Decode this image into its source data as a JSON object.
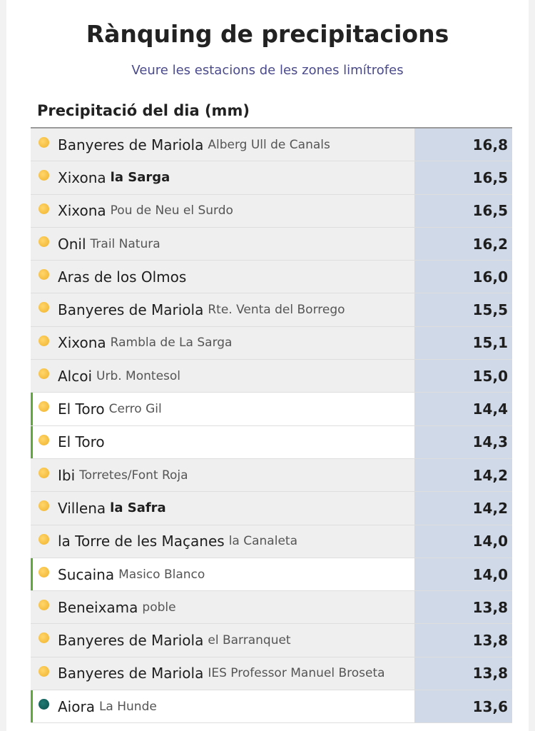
{
  "header": {
    "title": "Rànquing de precipitacions",
    "subtitle_link": "Veure les estacions de les zones limítrofes"
  },
  "section": {
    "title": "Precipitació del dia (mm)"
  },
  "colors": {
    "value_column": "#cfd9e8",
    "highlight_bar": "#5fa83a",
    "dot_yellow": "#f0b22a",
    "dot_teal": "#0a4f4b"
  },
  "rows": [
    {
      "town": "Banyeres de Mariola",
      "station": "Alberg Ull de Canals",
      "value": "16,8"
    },
    {
      "town": "Xixona",
      "station": "la Sarga",
      "value": "16,5"
    },
    {
      "town": "Xixona",
      "station": "Pou de Neu el Surdo",
      "value": "16,5"
    },
    {
      "town": "Onil",
      "station": "Trail Natura",
      "value": "16,2"
    },
    {
      "town": "Aras de los Olmos",
      "station": "",
      "value": "16,0"
    },
    {
      "town": "Banyeres de Mariola",
      "station": "Rte. Venta del Borrego",
      "value": "15,5"
    },
    {
      "town": "Xixona",
      "station": "Rambla de La Sarga",
      "value": "15,1"
    },
    {
      "town": "Alcoi",
      "station": "Urb. Montesol",
      "value": "15,0"
    },
    {
      "town": "El Toro",
      "station": "Cerro Gil",
      "value": "14,4"
    },
    {
      "town": "El Toro",
      "station": "",
      "value": "14,3"
    },
    {
      "town": "Ibi",
      "station": "Torretes/Font Roja",
      "value": "14,2"
    },
    {
      "town": "Villena",
      "station": "la Safra",
      "value": "14,2"
    },
    {
      "town": "la Torre de les Maçanes",
      "station": "la Canaleta",
      "value": "14,0"
    },
    {
      "town": "Sucaina",
      "station": "Masico Blanco",
      "value": "14,0"
    },
    {
      "town": "Beneixama",
      "station": "poble",
      "value": "13,8"
    },
    {
      "town": "Banyeres de Mariola",
      "station": "el Barranquet",
      "value": "13,8"
    },
    {
      "town": "Banyeres de Mariola",
      "station": "IES Professor Manuel Broseta",
      "value": "13,8"
    },
    {
      "town": "Aiora",
      "station": "La Hunde",
      "value": "13,6"
    }
  ]
}
